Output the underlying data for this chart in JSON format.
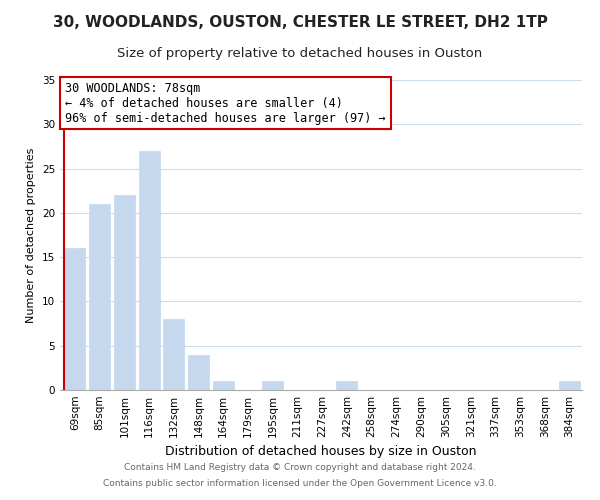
{
  "title": "30, WOODLANDS, OUSTON, CHESTER LE STREET, DH2 1TP",
  "subtitle": "Size of property relative to detached houses in Ouston",
  "xlabel": "Distribution of detached houses by size in Ouston",
  "ylabel": "Number of detached properties",
  "bar_labels": [
    "69sqm",
    "85sqm",
    "101sqm",
    "116sqm",
    "132sqm",
    "148sqm",
    "164sqm",
    "179sqm",
    "195sqm",
    "211sqm",
    "227sqm",
    "242sqm",
    "258sqm",
    "274sqm",
    "290sqm",
    "305sqm",
    "321sqm",
    "337sqm",
    "353sqm",
    "368sqm",
    "384sqm"
  ],
  "bar_values": [
    16,
    21,
    22,
    27,
    8,
    4,
    1,
    0,
    1,
    0,
    0,
    1,
    0,
    0,
    0,
    0,
    0,
    0,
    0,
    0,
    1
  ],
  "bar_color": "#c5d8ed",
  "bar_edge_color": "#c5d8ed",
  "annotation_line1": "30 WOODLANDS: 78sqm",
  "annotation_line2": "← 4% of detached houses are smaller (4)",
  "annotation_line3": "96% of semi-detached houses are larger (97) →",
  "annotation_box_edge_color": "#cc0000",
  "marker_line_color": "#cc0000",
  "ylim": [
    0,
    35
  ],
  "yticks": [
    0,
    5,
    10,
    15,
    20,
    25,
    30,
    35
  ],
  "footer_line1": "Contains HM Land Registry data © Crown copyright and database right 2024.",
  "footer_line2": "Contains public sector information licensed under the Open Government Licence v3.0.",
  "bg_color": "#ffffff",
  "grid_color": "#c8dff0",
  "title_fontsize": 11,
  "subtitle_fontsize": 9.5,
  "xlabel_fontsize": 9,
  "ylabel_fontsize": 8,
  "tick_fontsize": 7.5,
  "annotation_fontsize": 8.5,
  "footer_fontsize": 6.5
}
